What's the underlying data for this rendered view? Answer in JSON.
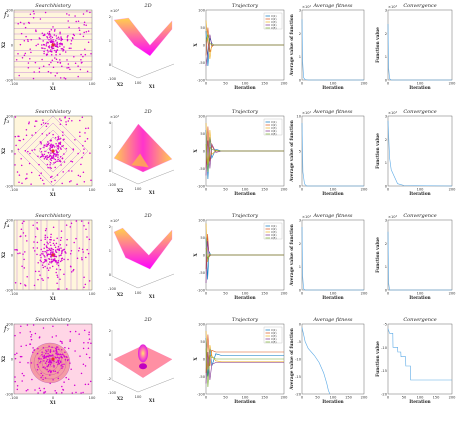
{
  "colors": {
    "dot": "#d400d4",
    "contour": "#9a2bd9",
    "center": "#e0302a",
    "bg_sh": "#ffe2f0",
    "s1": "#0072bd",
    "s2": "#d95319",
    "s3": "#edb120",
    "s4": "#7e2f8e",
    "s5": "#77ac30",
    "conv": "#5aa9e6",
    "surf_lo": "#ff00ff",
    "surf_hi": "#ffd24a"
  },
  "panel_titles": {
    "search": "Searchhistory",
    "surface": "2D",
    "trajectory": "Trajectory",
    "average": "Average fitness",
    "convergence": "Convergence"
  },
  "axis_labels": {
    "search_x": "X1",
    "search_y": "X2",
    "surf_x": "X2",
    "surf_y": "X1",
    "traj_x": "Iteration",
    "traj_y": "X",
    "avg_x": "Iteration",
    "avg_y": "Average value of function",
    "conv_x": "Iteration",
    "conv_y": "Function value"
  },
  "legend_entries": [
    "X(1)",
    "X(2)",
    "X(3)",
    "X(4)",
    "X(5)"
  ],
  "rows": [
    {
      "fn_label": "f₁",
      "fn_main": "f",
      "fn_sub": "1",
      "search_ticks": {
        "x": [
          "-100",
          "0",
          "100"
        ],
        "y": [
          "-100",
          "0",
          "100"
        ]
      },
      "surf_exp": "×10⁴",
      "surf_zticks": [
        "2",
        "1",
        "0"
      ],
      "surf_xyticks": [
        "-100",
        "0",
        "100"
      ],
      "traj_yticks": [
        "100",
        "50",
        "0",
        "-50",
        "-100"
      ],
      "traj_xticks": [
        "0",
        "50",
        "100",
        "150",
        "200"
      ],
      "avg_exp": "×10⁴",
      "avg_yticks": [
        "3",
        "2",
        "1",
        "0"
      ],
      "avg_xticks": [
        "0",
        "100",
        "200"
      ],
      "conv_exp": "×10⁴",
      "conv_yticks": [
        "3",
        "2",
        "1",
        "0"
      ],
      "conv_xticks": [
        "0",
        "100",
        "200"
      ],
      "chart_data": {
        "type": "line",
        "trajectory": {
          "xlim": [
            0,
            200
          ],
          "ylim": [
            -100,
            100
          ],
          "x": [
            0,
            5,
            10,
            15,
            20,
            30,
            50,
            200
          ],
          "series": [
            [
              40,
              -60,
              20,
              5,
              0,
              0,
              0,
              0
            ],
            [
              -30,
              50,
              -20,
              -5,
              0,
              0,
              0,
              0
            ],
            [
              70,
              10,
              -40,
              3,
              0,
              0,
              0,
              0
            ],
            [
              -60,
              -20,
              30,
              -2,
              0,
              0,
              0,
              0
            ],
            [
              10,
              30,
              5,
              0,
              0,
              0,
              0,
              0
            ]
          ]
        },
        "average": {
          "xlim": [
            0,
            200
          ],
          "ylim": [
            0,
            3
          ],
          "x": [
            0,
            2,
            5,
            10,
            20,
            200
          ],
          "y": [
            2.6,
            0.8,
            0.1,
            0.02,
            0,
            0
          ]
        },
        "convergence": {
          "xlim": [
            0,
            200
          ],
          "ylim": [
            0,
            3
          ],
          "x": [
            0,
            2,
            5,
            10,
            200
          ],
          "y": [
            2.4,
            0.5,
            0.05,
            0,
            0
          ]
        }
      }
    },
    {
      "fn_label": "f₃",
      "fn_main": "f",
      "fn_sub": "3",
      "search_ticks": {
        "x": [
          "-100",
          "0",
          "100"
        ],
        "y": [
          "-100",
          "0",
          "100"
        ]
      },
      "surf_exp": "×10⁴",
      "surf_zticks": [
        "4",
        "2",
        "0"
      ],
      "surf_xyticks": [
        "-100",
        "0",
        "100"
      ],
      "traj_yticks": [
        "100",
        "50",
        "0",
        "-50",
        "-100"
      ],
      "traj_xticks": [
        "0",
        "50",
        "100",
        "150",
        "200"
      ],
      "avg_exp": "×10⁴",
      "avg_yticks": [
        "10",
        "5",
        "0"
      ],
      "avg_xticks": [
        "0",
        "100",
        "200"
      ],
      "conv_exp": "×10⁴",
      "conv_yticks": [
        "3",
        "2",
        "1",
        "0"
      ],
      "conv_xticks": [
        "0",
        "100",
        "200"
      ],
      "chart_data": {
        "type": "line",
        "trajectory": {
          "xlim": [
            0,
            200
          ],
          "ylim": [
            -100,
            100
          ],
          "x": [
            0,
            5,
            10,
            15,
            25,
            40,
            200
          ],
          "series": [
            [
              60,
              -80,
              40,
              -20,
              5,
              0,
              0
            ],
            [
              -50,
              70,
              -30,
              15,
              -3,
              0,
              0
            ],
            [
              80,
              -40,
              60,
              -10,
              2,
              0,
              0
            ],
            [
              -70,
              30,
              -50,
              20,
              -4,
              0,
              0
            ],
            [
              20,
              -60,
              10,
              5,
              1,
              0,
              0
            ]
          ]
        },
        "average": {
          "xlim": [
            0,
            200
          ],
          "ylim": [
            0,
            10
          ],
          "x": [
            0,
            3,
            8,
            15,
            200
          ],
          "y": [
            9.0,
            2.0,
            0.3,
            0,
            0
          ]
        },
        "convergence": {
          "xlim": [
            0,
            200
          ],
          "ylim": [
            0,
            3
          ],
          "x": [
            0,
            5,
            10,
            20,
            30,
            50,
            200
          ],
          "y": [
            2.8,
            1.2,
            0.7,
            0.4,
            0.1,
            0.02,
            0
          ]
        }
      }
    },
    {
      "fn_label": "f₄",
      "fn_main": "f",
      "fn_sub": "4",
      "search_ticks": {
        "x": [
          "-100",
          "0",
          "100"
        ],
        "y": [
          "-100",
          "0",
          "100"
        ]
      },
      "surf_exp": "×10⁴",
      "surf_zticks": [
        "2",
        "1",
        "0"
      ],
      "surf_xyticks": [
        "-100",
        "0",
        "100"
      ],
      "traj_yticks": [
        "100",
        "50",
        "0",
        "-50",
        "-100"
      ],
      "traj_xticks": [
        "0",
        "50",
        "100",
        "150",
        "200"
      ],
      "avg_exp": "×10⁴",
      "avg_yticks": [
        "3",
        "2",
        "1",
        "0"
      ],
      "avg_xticks": [
        "0",
        "100",
        "200"
      ],
      "conv_exp": "×10⁴",
      "conv_yticks": [
        "3",
        "2",
        "1",
        "0"
      ],
      "conv_xticks": [
        "0",
        "100",
        "200"
      ],
      "chart_data": {
        "type": "line",
        "trajectory": {
          "xlim": [
            0,
            200
          ],
          "ylim": [
            -100,
            100
          ],
          "x": [
            0,
            4,
            8,
            12,
            20,
            200
          ],
          "series": [
            [
              50,
              -70,
              10,
              0,
              0,
              0
            ],
            [
              -40,
              60,
              -5,
              0,
              0,
              0
            ],
            [
              90,
              -20,
              3,
              0,
              0,
              0
            ],
            [
              -80,
              40,
              -2,
              0,
              0,
              0
            ],
            [
              20,
              -10,
              1,
              0,
              0,
              0
            ]
          ]
        },
        "average": {
          "xlim": [
            0,
            200
          ],
          "ylim": [
            0,
            3
          ],
          "x": [
            0,
            2,
            5,
            10,
            200
          ],
          "y": [
            2.7,
            0.6,
            0.05,
            0,
            0
          ]
        },
        "convergence": {
          "xlim": [
            0,
            200
          ],
          "ylim": [
            0,
            3
          ],
          "x": [
            0,
            2,
            5,
            200
          ],
          "y": [
            2.5,
            0.3,
            0,
            0
          ]
        }
      }
    },
    {
      "fn_label": "f₇",
      "fn_main": "f",
      "fn_sub": "7",
      "search_ticks": {
        "x": [
          "-100",
          "0",
          "100"
        ],
        "y": [
          "-100",
          "0",
          "100"
        ]
      },
      "surf_exp": "",
      "surf_zticks": [
        "2",
        "0",
        "-2"
      ],
      "surf_xyticks": [
        "-100",
        "0",
        "100"
      ],
      "traj_yticks": [
        "100",
        "50",
        "0",
        "-50",
        "-100"
      ],
      "traj_xticks": [
        "0",
        "50",
        "100",
        "150",
        "200"
      ],
      "avg_exp": "",
      "avg_yticks": [
        "0",
        "-5",
        "-10",
        "-15",
        "-20"
      ],
      "avg_xticks": [
        "0",
        "50",
        "100",
        "150",
        "200"
      ],
      "conv_exp": "",
      "conv_yticks": [
        "-5",
        "-10",
        "-15",
        "-20"
      ],
      "conv_xticks": [
        "0",
        "50",
        "100",
        "150",
        "200"
      ],
      "chart_data": {
        "type": "line",
        "trajectory": {
          "xlim": [
            0,
            200
          ],
          "ylim": [
            -100,
            100
          ],
          "x": [
            0,
            5,
            10,
            15,
            25,
            40,
            60,
            80,
            200
          ],
          "series": [
            [
              60,
              -50,
              30,
              -20,
              15,
              10,
              10,
              10,
              10
            ],
            [
              -40,
              70,
              -20,
              25,
              20,
              20,
              20,
              20,
              20
            ],
            [
              80,
              -30,
              40,
              10,
              -5,
              -8,
              -8,
              -8,
              -8
            ],
            [
              -70,
              20,
              -60,
              -15,
              -10,
              -10,
              -10,
              -10,
              -10
            ],
            [
              30,
              -80,
              10,
              5,
              0,
              0,
              0,
              0,
              0
            ]
          ]
        },
        "average": {
          "xlim": [
            0,
            200
          ],
          "ylim": [
            -20,
            0
          ],
          "x": [
            0,
            5,
            10,
            20,
            40,
            55,
            70,
            80,
            85,
            90
          ],
          "y": [
            -1,
            -3,
            -5,
            -7,
            -9,
            -11,
            -14,
            -17,
            -19,
            -20
          ]
        },
        "convergence": {
          "xlim": [
            0,
            200
          ],
          "ylim": [
            -20,
            -5
          ],
          "x": [
            0,
            5,
            15,
            15.5,
            30,
            30.5,
            40,
            40.5,
            55,
            55.5,
            70,
            70.5,
            200
          ],
          "y": [
            -6,
            -7,
            -7,
            -10,
            -10,
            -11,
            -11,
            -12,
            -12,
            -14,
            -14,
            -17,
            -17
          ]
        }
      }
    }
  ]
}
